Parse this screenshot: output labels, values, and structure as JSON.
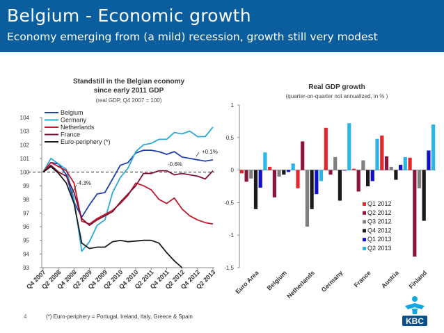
{
  "page": {
    "title": "Belgium - Economic growth",
    "subtitle": "Economy emerging from (a mild) recession, growth still very modest",
    "page_number": "4",
    "footnote": "(*) Euro-periphery = Portugal, Ireland, Italy, Greece & Spain",
    "logo_text": "KBC"
  },
  "chart_data": [
    {
      "type": "line",
      "title": "Standstill in the Belgian economy since early 2011 GDP",
      "title_lines": [
        "Standstill in the Belgian economy",
        "since early 2011 GDP"
      ],
      "subtitle": "(real GDP, Q4 2007 = 100)",
      "ylim": [
        93,
        104
      ],
      "yticks": [
        93,
        94,
        95,
        96,
        97,
        98,
        99,
        100,
        101,
        102,
        103,
        104
      ],
      "x": [
        "Q4 2007",
        "Q1 2008",
        "Q2 2008",
        "Q3 2008",
        "Q4 2008",
        "Q1 2009",
        "Q2 2009",
        "Q3 2009",
        "Q4 2009",
        "Q1 2010",
        "Q2 2010",
        "Q3 2010",
        "Q4 2010",
        "Q1 2011",
        "Q2 2011",
        "Q3 2011",
        "Q4 2011",
        "Q1 2012",
        "Q2 2012",
        "Q3 2012",
        "Q4 2012",
        "Q1 2013",
        "Q2 2013"
      ],
      "xtick_labels": [
        "Q4 2007",
        "Q2 2008",
        "Q4 2008",
        "Q2 2009",
        "Q4 2009",
        "Q2 2010",
        "Q4 2010",
        "Q2 2011",
        "Q4 2011",
        "Q2 2012",
        "Q4 2012",
        "Q2 2013"
      ],
      "reference_line": 100,
      "legend_position": "top-left",
      "series": [
        {
          "name": "Belgium",
          "color": "#1f3fb0",
          "values": [
            100.0,
            100.7,
            100.6,
            99.8,
            97.8,
            96.7,
            97.6,
            98.4,
            98.5,
            99.5,
            100.5,
            100.7,
            101.4,
            101.6,
            101.6,
            101.5,
            101.3,
            101.5,
            101.1,
            101.0,
            100.9,
            100.8,
            100.9
          ]
        },
        {
          "name": "Germany",
          "color": "#2aa9d9",
          "values": [
            100.0,
            101.0,
            100.6,
            100.2,
            98.0,
            94.2,
            94.9,
            96.1,
            96.5,
            98.5,
            99.6,
            100.3,
            101.5,
            102.0,
            102.1,
            102.4,
            102.4,
            102.9,
            102.8,
            103.0,
            102.6,
            102.6,
            103.3
          ]
        },
        {
          "name": "Netherlands",
          "color": "#c0192c",
          "values": [
            100.0,
            100.7,
            100.4,
            100.1,
            99.2,
            96.4,
            96.2,
            96.6,
            96.9,
            97.2,
            97.7,
            98.3,
            99.2,
            99.0,
            98.7,
            98.0,
            97.7,
            98.1,
            97.3,
            96.8,
            96.5,
            96.3,
            96.2
          ]
        },
        {
          "name": "France",
          "color": "#7d1034",
          "values": [
            100.0,
            100.5,
            100.0,
            99.7,
            98.5,
            96.6,
            96.1,
            96.5,
            96.8,
            97.1,
            97.8,
            98.4,
            99.0,
            99.9,
            99.9,
            100.1,
            100.1,
            99.8,
            99.9,
            99.8,
            99.7,
            99.5,
            100.1
          ]
        },
        {
          "name": "Euro-periphery (*)",
          "color": "#1a1a1a",
          "values": [
            100.0,
            100.4,
            99.9,
            99.2,
            97.7,
            94.8,
            94.4,
            94.5,
            94.5,
            94.9,
            95.0,
            94.9,
            94.95,
            95.0,
            95.0,
            94.8,
            94.1,
            93.5,
            93.0,
            null,
            null,
            null,
            null
          ]
        }
      ],
      "annotations": [
        "+0.1%",
        "-0.6%",
        "-4.3%"
      ]
    },
    {
      "type": "bar",
      "title": "Real GDP growth",
      "subtitle": "(quarter-on-quarter not annualized, in % )",
      "ylim": [
        -1.5,
        1
      ],
      "yticks": [
        1,
        0.5,
        0,
        -0.5,
        -1,
        -1.5
      ],
      "ytick_labels": [
        "1",
        "0,5",
        "0",
        "-0,5",
        "-1",
        "-1,5"
      ],
      "categories": [
        "Euro Area",
        "Belgium",
        "Netherlands",
        "Germany",
        "France",
        "Austria",
        "Finland"
      ],
      "legend_position": "bottom-right",
      "series": [
        {
          "name": "Q1 2012",
          "color": "#e5262c",
          "values": [
            -0.05,
            0.05,
            -0.28,
            0.65,
            0.02,
            0.53,
            0.19
          ]
        },
        {
          "name": "Q2 2012",
          "color": "#8b1538",
          "values": [
            -0.18,
            -0.42,
            0.44,
            -0.07,
            -0.33,
            0.21,
            -1.33
          ]
        },
        {
          "name": "Q3 2012",
          "color": "#808080",
          "values": [
            -0.13,
            -0.1,
            -0.87,
            0.2,
            0.15,
            0.05,
            -0.28
          ]
        },
        {
          "name": "Q4 2012",
          "color": "#1a1a1a",
          "values": [
            -0.6,
            -0.07,
            -0.6,
            -0.47,
            -0.25,
            -0.15,
            -0.78
          ]
        },
        {
          "name": "Q1 2013",
          "color": "#1010c8",
          "values": [
            -0.27,
            -0.03,
            -0.37,
            0.0,
            -0.17,
            0.08,
            0.3
          ]
        },
        {
          "name": "Q2 2013",
          "color": "#28b8e8",
          "values": [
            0.27,
            0.1,
            -0.17,
            0.72,
            0.48,
            0.2,
            0.7
          ]
        }
      ]
    }
  ]
}
